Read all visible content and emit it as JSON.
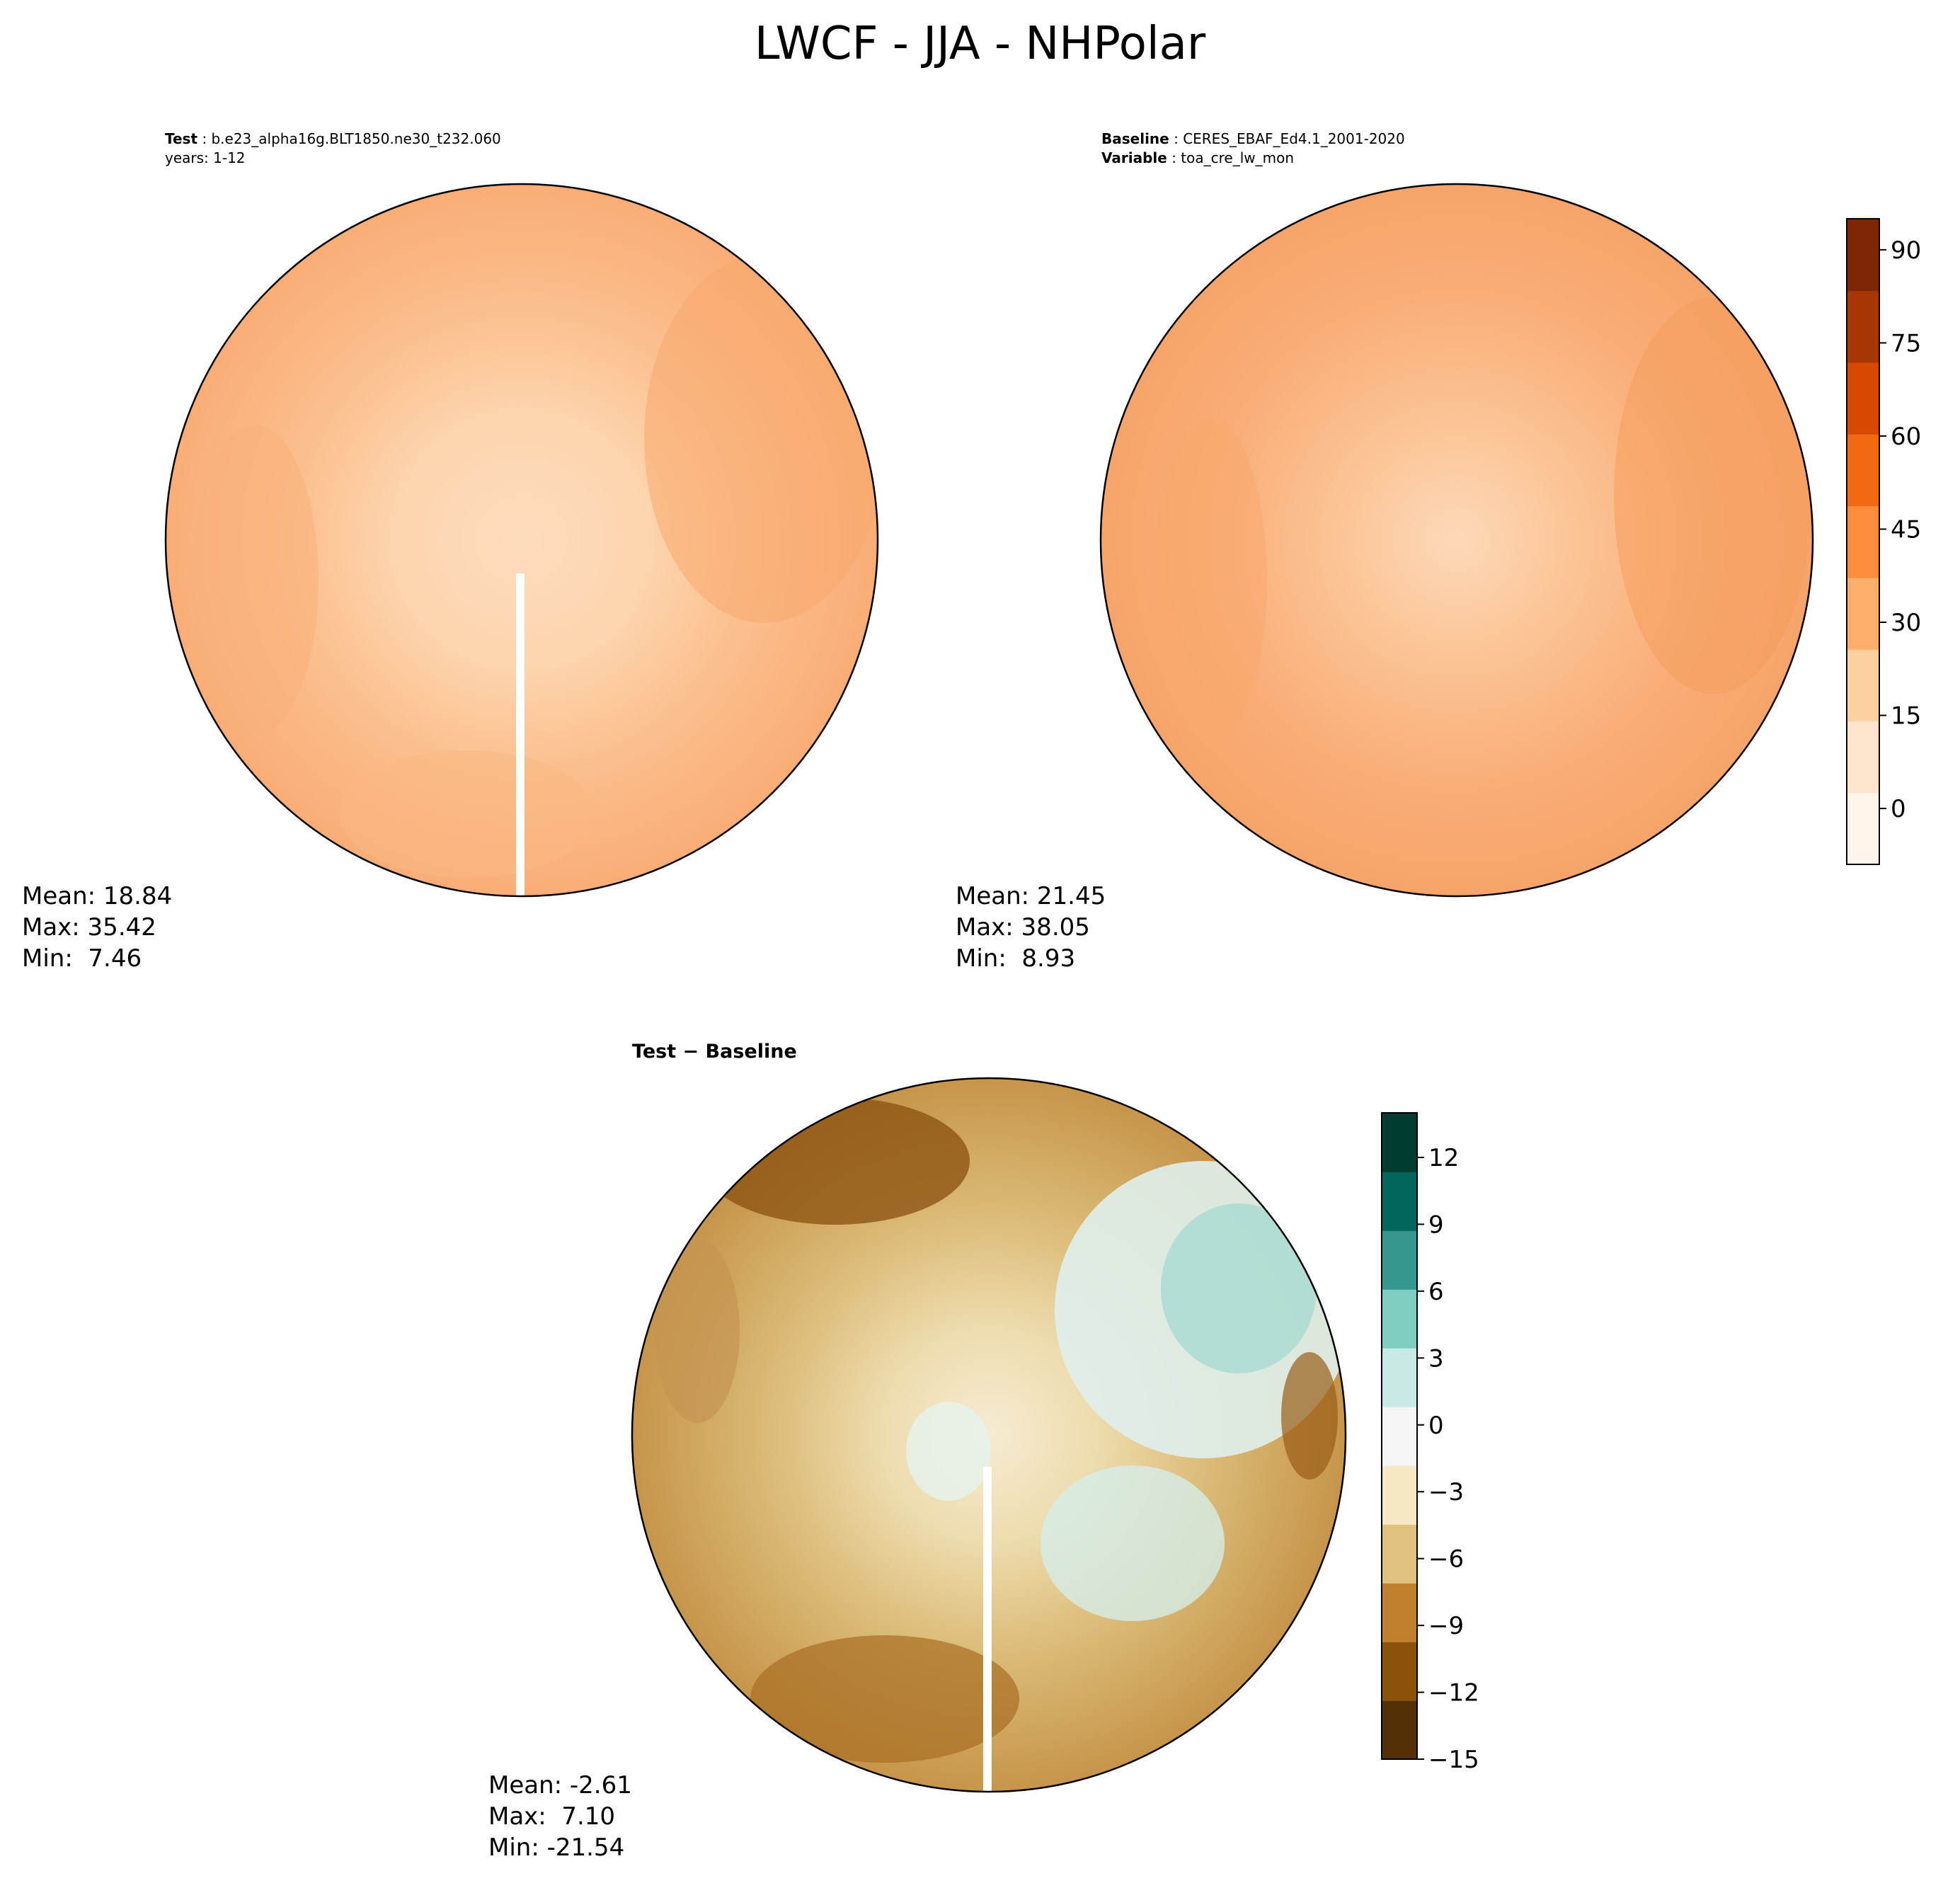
{
  "figure": {
    "title": "LWCF - JJA - NHPolar"
  },
  "panels": {
    "test": {
      "label": "Test",
      "name": "b.e23_alpha16g.BLT1850.ne30_t232.060",
      "years": "years: 1-12",
      "stats": {
        "mean": "Mean: 18.84",
        "max": "Max: 35.42",
        "min": "Min:  7.46"
      }
    },
    "baseline": {
      "label": "Baseline",
      "name": "CERES_EBAF_Ed4.1_2001-2020",
      "variable_label": "Variable",
      "variable": "toa_cre_lw_mon",
      "stats": {
        "mean": "Mean: 21.45",
        "max": "Max: 38.05",
        "min": "Min:  8.93"
      }
    },
    "diff": {
      "title": "Test − Baseline",
      "stats": {
        "mean": "Mean: -2.61",
        "max": "Max:  7.10",
        "min": "Min: -21.54"
      }
    }
  },
  "colorbars": {
    "main": {
      "range": [
        -9,
        95
      ],
      "ticks": [
        "0",
        "15",
        "30",
        "45",
        "60",
        "75",
        "90"
      ],
      "tick_values": [
        0,
        15,
        30,
        45,
        60,
        75,
        90
      ],
      "colors": [
        "#fff5eb",
        "#fee6ce",
        "#fdd0a2",
        "#fdae6b",
        "#fd8d3c",
        "#f16913",
        "#d94801",
        "#a63603",
        "#7f2704"
      ]
    },
    "diff": {
      "range": [
        -15,
        14
      ],
      "ticks": [
        "12",
        "9",
        "6",
        "3",
        "0",
        "−3",
        "−6",
        "−9",
        "−12",
        "−15"
      ],
      "tick_values": [
        12,
        9,
        6,
        3,
        0,
        -3,
        -6,
        -9,
        -12,
        -15
      ],
      "colors": [
        "#543005",
        "#8c510a",
        "#bf812d",
        "#dfc27d",
        "#f6e8c3",
        "#f5f5f5",
        "#c7eae5",
        "#80cdc1",
        "#35978f",
        "#01665e",
        "#003c30"
      ]
    }
  }
}
